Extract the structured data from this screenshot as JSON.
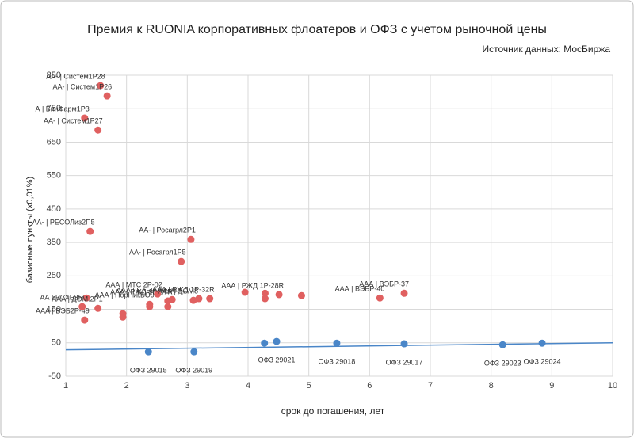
{
  "chart_data": {
    "type": "scatter",
    "title": "Премия к RUONIA корпоративных флоатеров и ОФЗ с учетом рыночной цены",
    "subtitle": "Источник данных: МосБиржа",
    "x_label": "срок до погашения, лет",
    "y_label": "базисные пункты (х0,01%)",
    "xlim": [
      1,
      10
    ],
    "xticks": [
      1,
      2,
      3,
      4,
      5,
      6,
      7,
      8,
      9,
      10
    ],
    "ylim": [
      -50,
      850
    ],
    "yticks": [
      -50,
      50,
      150,
      250,
      350,
      450,
      550,
      650,
      750,
      850
    ],
    "grid": true,
    "series": [
      {
        "color": "#e06060",
        "label_position": "above",
        "x": [
          1.57,
          1.68,
          1.31,
          1.53,
          1.4,
          3.06,
          2.9,
          1.31,
          1.27,
          1.34,
          1.53,
          1.94,
          1.94,
          2.38,
          2.38,
          2.68,
          2.68,
          2.75,
          2.51,
          3.1,
          3.19,
          3.37,
          3.95,
          4.28,
          4.28,
          4.51,
          4.88,
          6.17,
          6.57
        ],
        "values": [
          819,
          788,
          722,
          686,
          383,
          359,
          293,
          118,
          158,
          184,
          153,
          137,
          127,
          165,
          158,
          175,
          158,
          179,
          196,
          177,
          182,
          182,
          201,
          198,
          182,
          194,
          191,
          184,
          198
        ],
        "labels": [
          "АА- | Систем1Р28",
          "АА- | Систем1Р26",
          "А | БинФарм1Р3",
          "АА- | Систем1Р27",
          "АА- | РЕСОЛиз2П5",
          "АА- | Росагрл2Р1",
          "АА- | Росагрл1Р5",
          "ААА | ВЭБ2Р-49",
          "АА | РСХБ3Р3",
          null,
          "ААА | ДОМ.2Р1",
          null,
          null,
          "ААА | НорНикБО9",
          null,
          "ААА | РЖД 1Р-27R",
          null,
          "ААА | ЕАБР П3-08",
          "ААА | МТС 2Р-02",
          "ААА | ДОМ8",
          null,
          "ААА | РЖД 1Р-32R",
          null,
          null,
          null,
          "ААА | РЖД 1Р-28R",
          null,
          "ААА | ВЭБР-40",
          "ААА | ВЭБР-37"
        ]
      },
      {
        "color": "#4a86c8",
        "label_position": "below",
        "x": [
          2.36,
          3.11,
          4.27,
          4.47,
          5.46,
          6.57,
          8.19,
          8.84
        ],
        "values": [
          23,
          23,
          49,
          54,
          49,
          47,
          44,
          49
        ],
        "labels": [
          "ОФЗ 29015",
          "ОФЗ 29019",
          null,
          "ОФЗ 29021",
          "ОФЗ 29018",
          "ОФЗ 29017",
          "ОФЗ 29023",
          "ОФЗ 29024"
        ]
      }
    ],
    "trendline": {
      "color": "#4a86c8",
      "x": [
        1,
        10
      ],
      "values": [
        29,
        50
      ]
    }
  }
}
